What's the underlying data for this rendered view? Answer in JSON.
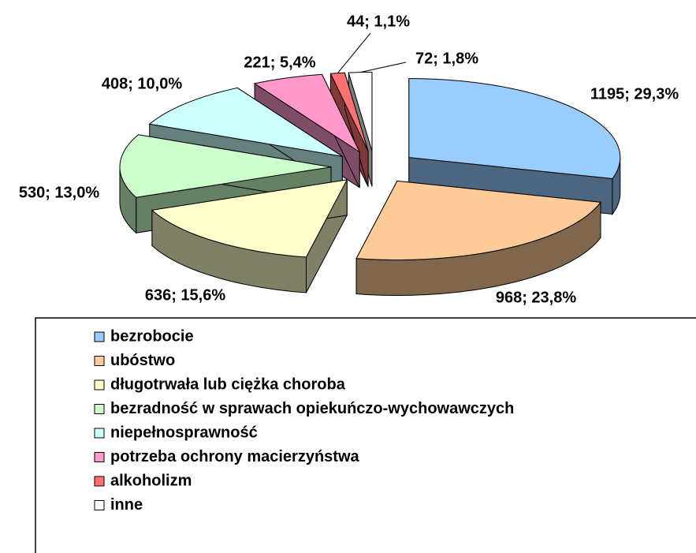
{
  "chart_data": {
    "type": "pie",
    "categories": [
      "bezrobocie",
      "ubóstwo",
      "długotrwała lub ciężka choroba",
      "bezradność w sprawach opiekuńczo-wychowawczych",
      "niepełnosprawność",
      "potrzeba ochrony macierzyństwa",
      "alkoholizm",
      "inne"
    ],
    "values": [
      1195,
      968,
      636,
      530,
      408,
      221,
      44,
      72
    ],
    "value_labels": [
      "1195; 29,3%",
      "968; 23,8%",
      "636; 15,6%",
      "530; 13,0%",
      "408; 10,0%",
      "221; 5,4%",
      "44; 1,1%",
      "72; 1,8%"
    ],
    "colors": [
      "#99ccff",
      "#ffcc99",
      "#ffffcc",
      "#ccffcc",
      "#ccffff",
      "#ff99cc",
      "#ff7070",
      "#ffffff"
    ]
  }
}
